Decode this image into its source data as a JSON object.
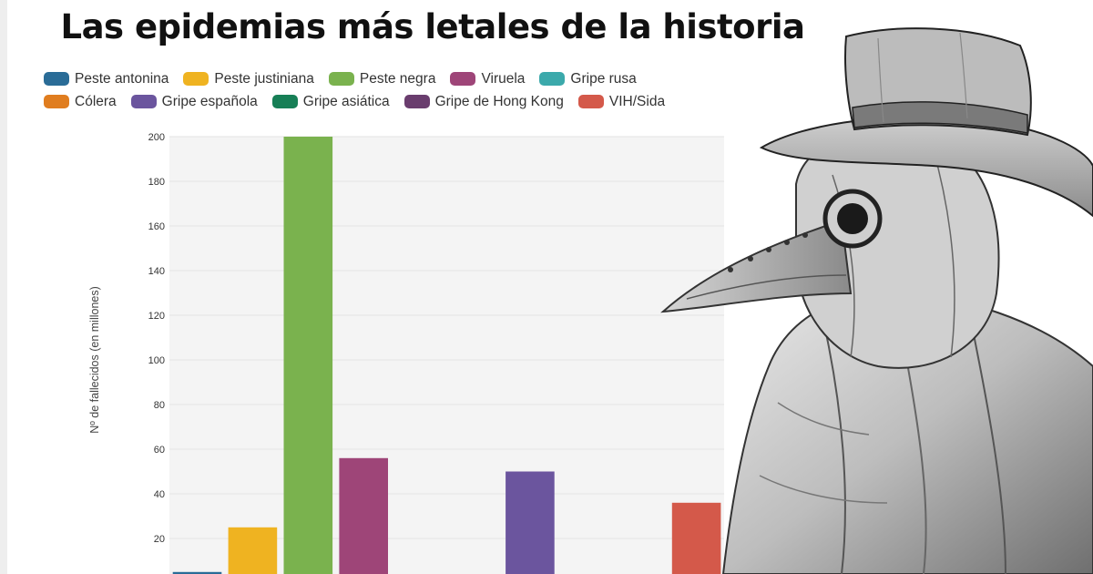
{
  "title": "Las epidemias más letales de la historia",
  "chart_data": {
    "type": "bar",
    "title": "Las epidemias más letales de la historia",
    "ylabel": "Nº de fallecidos (en millones)",
    "ylim": [
      0,
      200
    ],
    "y_ticks": [
      20,
      40,
      60,
      80,
      100,
      120,
      140,
      160,
      180,
      200
    ],
    "grid": true,
    "legend_position": "top",
    "series": [
      {
        "name": "Peste antonina",
        "value": 5,
        "color": "#2a6c97"
      },
      {
        "name": "Peste justiniana",
        "value": 25,
        "color": "#efb321"
      },
      {
        "name": "Peste negra",
        "value": 200,
        "color": "#7ab24e"
      },
      {
        "name": "Viruela",
        "value": 56,
        "color": "#9e4578"
      },
      {
        "name": "Gripe rusa",
        "value": 1,
        "color": "#3ba9ab"
      },
      {
        "name": "Cólera",
        "value": 1,
        "color": "#e07d1f"
      },
      {
        "name": "Gripe española",
        "value": 50,
        "color": "#6b559e"
      },
      {
        "name": "Gripe asiática",
        "value": 1.1,
        "color": "#177f56"
      },
      {
        "name": "Gripe de Hong Kong",
        "value": 1,
        "color": "#6a3d6e"
      },
      {
        "name": "VIH/Sida",
        "value": 36,
        "color": "#d4594a"
      }
    ]
  }
}
